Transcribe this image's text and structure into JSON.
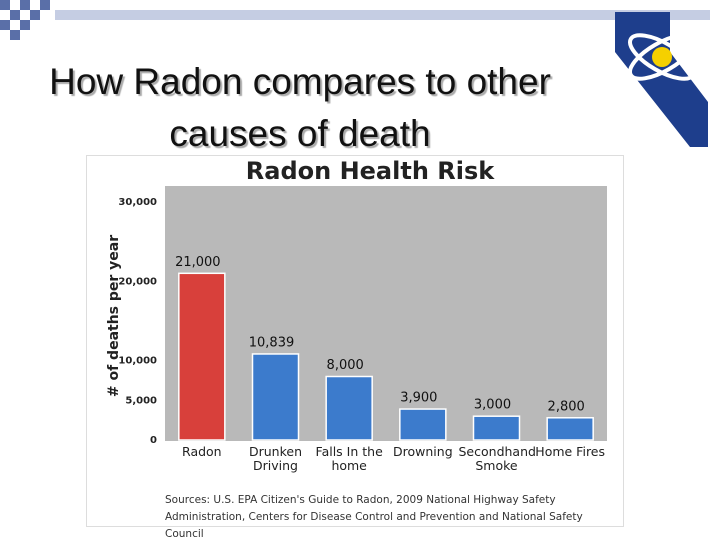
{
  "slide_title": "How Radon compares to other causes of death",
  "chart_data": {
    "type": "bar",
    "title": "Radon Health Risk",
    "y_label": "# of deaths per year",
    "categories": [
      "Radon",
      "Drunken Driving",
      "Falls In the home",
      "Drowning",
      "Secondhand Smoke",
      "Home Fires"
    ],
    "values": [
      21000,
      10839,
      8000,
      3900,
      3000,
      2800
    ],
    "value_labels": [
      "21,000",
      "10,839",
      "8,000",
      "3,900",
      "3,000",
      "2,800"
    ],
    "colors": [
      "#d8403b",
      "#3c7bcc",
      "#3c7bcc",
      "#3c7bcc",
      "#3c7bcc",
      "#3c7bcc"
    ],
    "ylim": [
      0,
      32000
    ],
    "yticks": [
      0,
      {
        "value": 5000,
        "label": "5,000"
      },
      {
        "value": 10000,
        "label": "10,000"
      },
      {
        "value": 20000,
        "label": "20,000"
      },
      {
        "value": 30000,
        "label": "30,000"
      }
    ],
    "grid": false,
    "source": "Sources: U.S. EPA Citizen's Guide to Radon, 2009 National Highway Safety Administration, Centers for Disease Control and Prevention and National Safety Council"
  }
}
